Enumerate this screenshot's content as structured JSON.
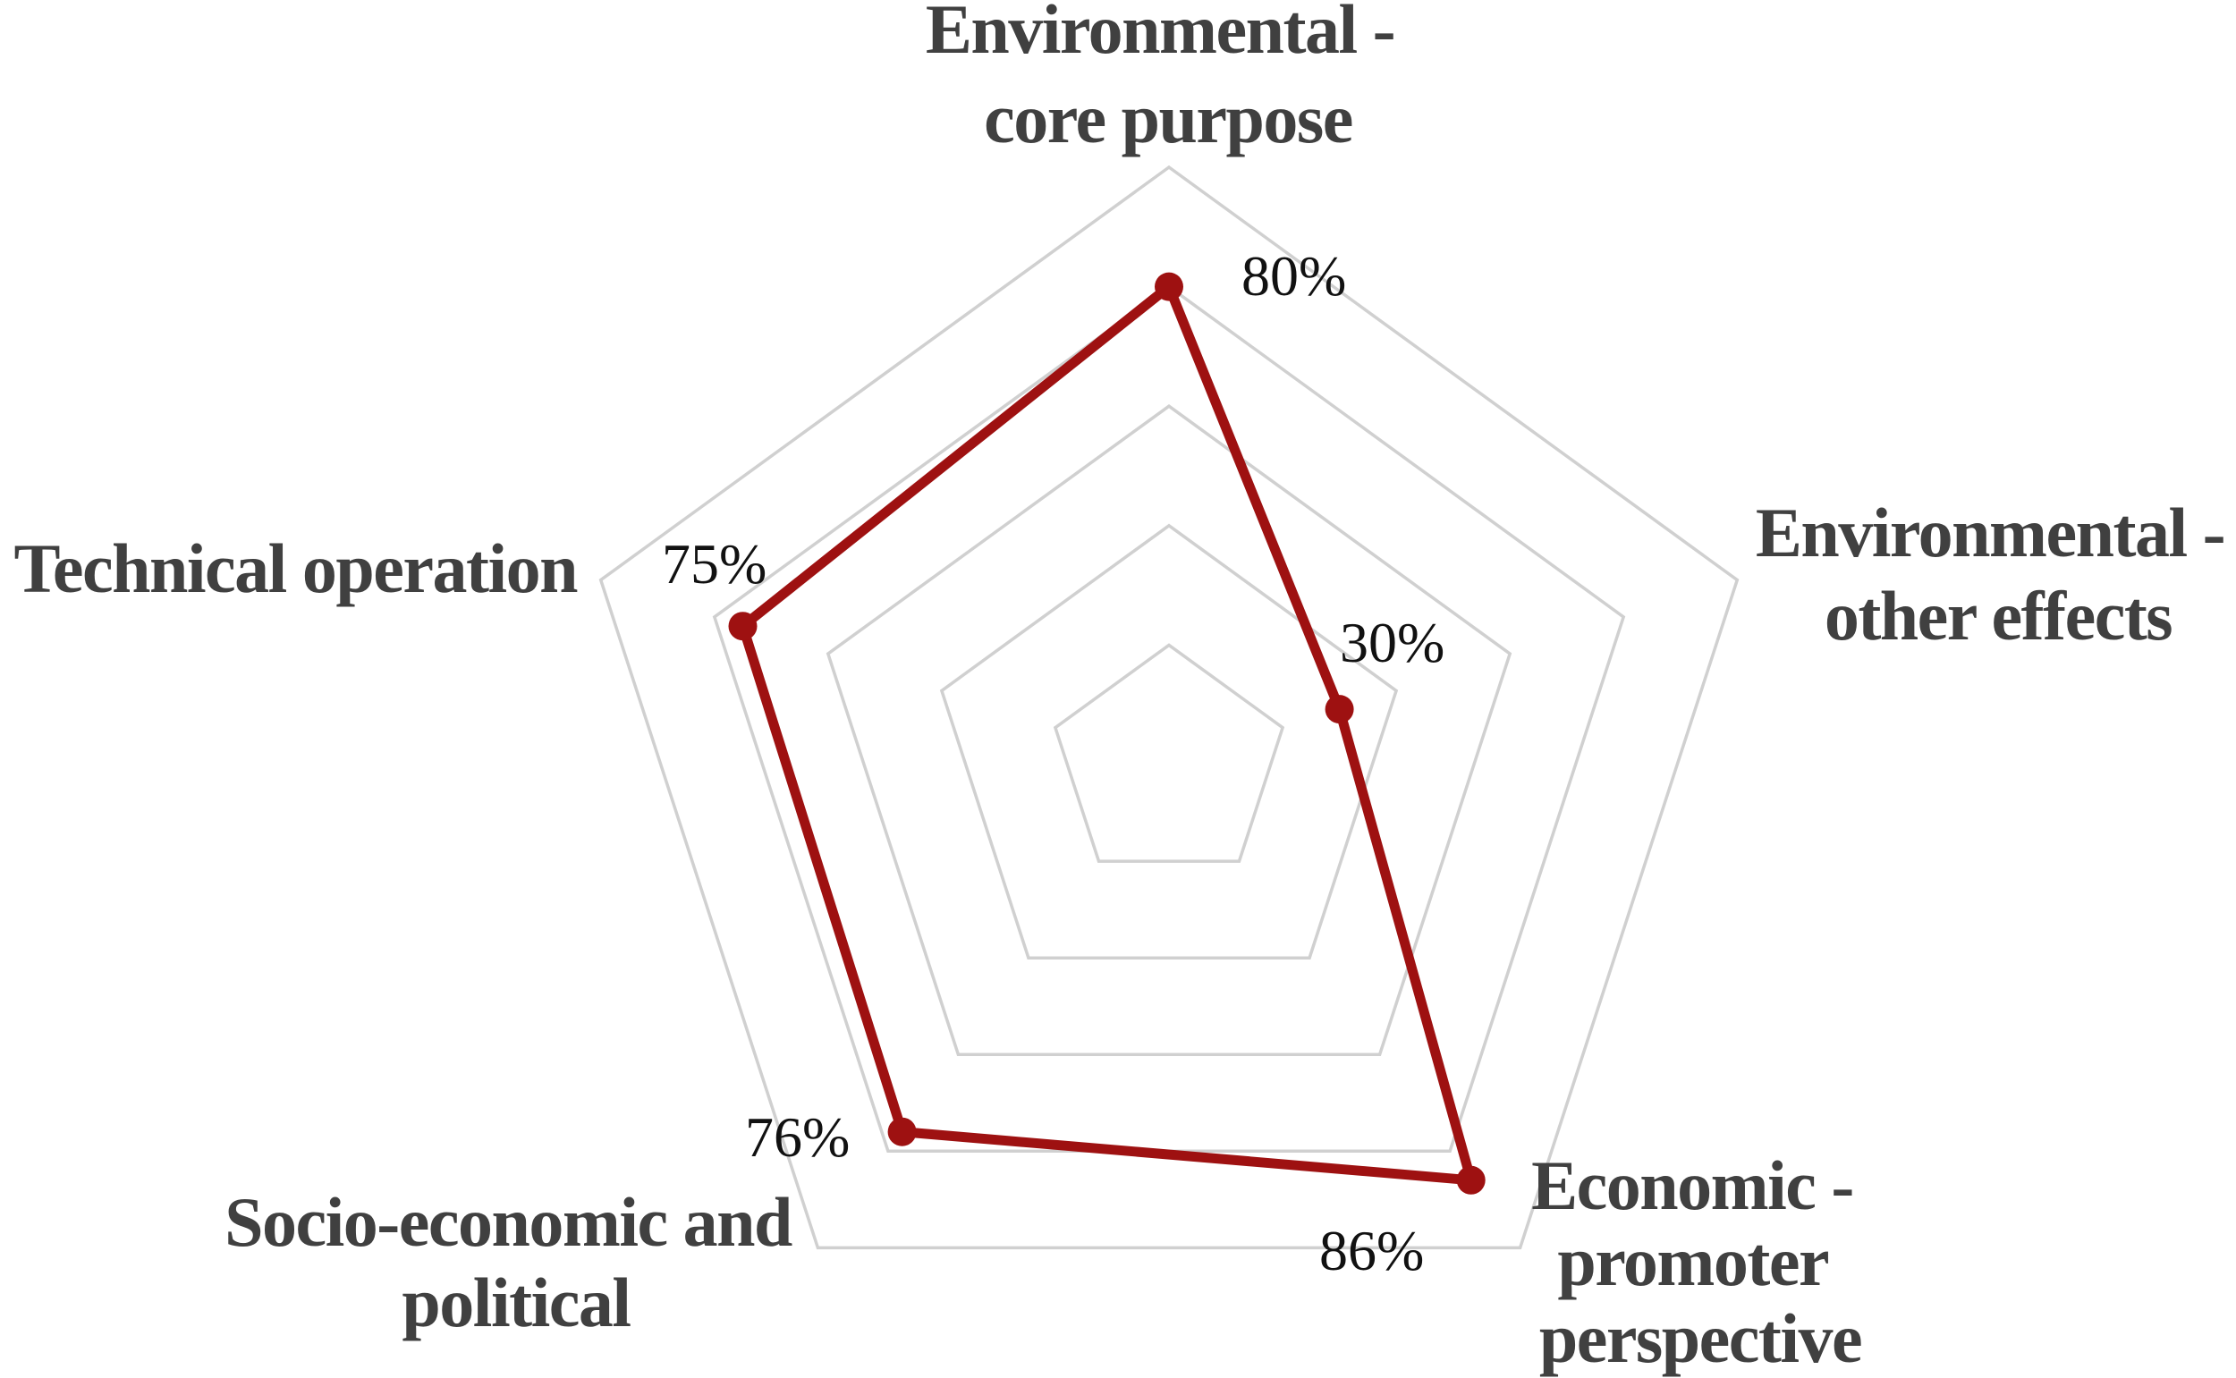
{
  "chart_data": {
    "type": "radar",
    "title": "",
    "categories": [
      "Environmental - core purpose",
      "Environmental - other effects",
      "Economic - promoter perspective",
      "Socio-economic and political",
      "Technical operation"
    ],
    "series": [
      {
        "name": "Score",
        "values": [
          80,
          30,
          86,
          76,
          75
        ],
        "value_labels": [
          "80%",
          "30%",
          "86%",
          "76%",
          "75%"
        ],
        "color": "#9e1111"
      }
    ],
    "rlim": [
      0,
      100
    ],
    "rings": 5,
    "ring_step": 20,
    "grid": true,
    "legend": "none",
    "grid_color": "#d0d0d0"
  },
  "axis_labels": [
    {
      "lines": [
        "Environmental -",
        "core purpose"
      ]
    },
    {
      "lines": [
        "Environmental -",
        "other effects"
      ]
    },
    {
      "lines": [
        "Economic -",
        "promoter",
        "perspective"
      ]
    },
    {
      "lines": [
        "Socio-economic and",
        "political"
      ]
    },
    {
      "lines": [
        "Technical operation"
      ]
    }
  ],
  "value_labels": [
    "80%",
    "30%",
    "86%",
    "76%",
    "75%"
  ]
}
